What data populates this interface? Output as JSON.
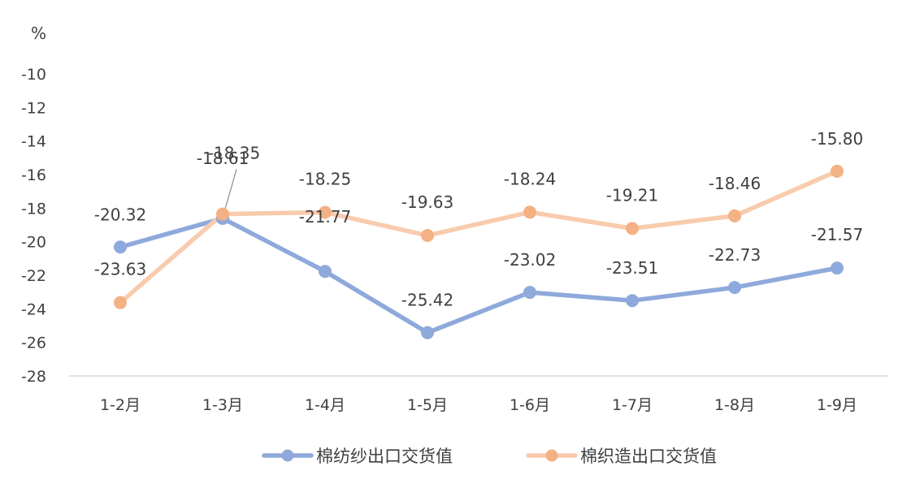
{
  "chart_data": {
    "type": "line",
    "unit_label": "%",
    "categories": [
      "1-2月",
      "1-3月",
      "1-4月",
      "1-5月",
      "1-6月",
      "1-7月",
      "1-8月",
      "1-9月"
    ],
    "ylim": [
      -28,
      -10
    ],
    "y_ticks": [
      -10,
      -12,
      -14,
      -16,
      -18,
      -20,
      -22,
      -24,
      -26,
      -28
    ],
    "grid": false,
    "legend_position": "bottom",
    "series": [
      {
        "name": "棉纺纱出口交货值",
        "color": "#8EA9DB",
        "values": [
          -20.32,
          -18.61,
          -21.77,
          -25.42,
          -23.02,
          -23.51,
          -22.73,
          -21.57
        ],
        "labels": [
          "-20.32",
          "-18.61",
          "-21.77",
          "-25.42",
          "-23.02",
          "-23.51",
          "-22.73",
          "-21.57"
        ]
      },
      {
        "name": "棉织造出口交货值",
        "color": "#F8CBAD",
        "marker_color": "#F4B183",
        "values": [
          -23.63,
          -18.35,
          -18.25,
          -19.63,
          -18.24,
          -19.21,
          -18.46,
          -15.8
        ],
        "labels": [
          "-23.63",
          "-18.35",
          "-18.25",
          "-19.63",
          "-18.24",
          "-19.21",
          "-18.46",
          "-15.80"
        ]
      }
    ]
  }
}
